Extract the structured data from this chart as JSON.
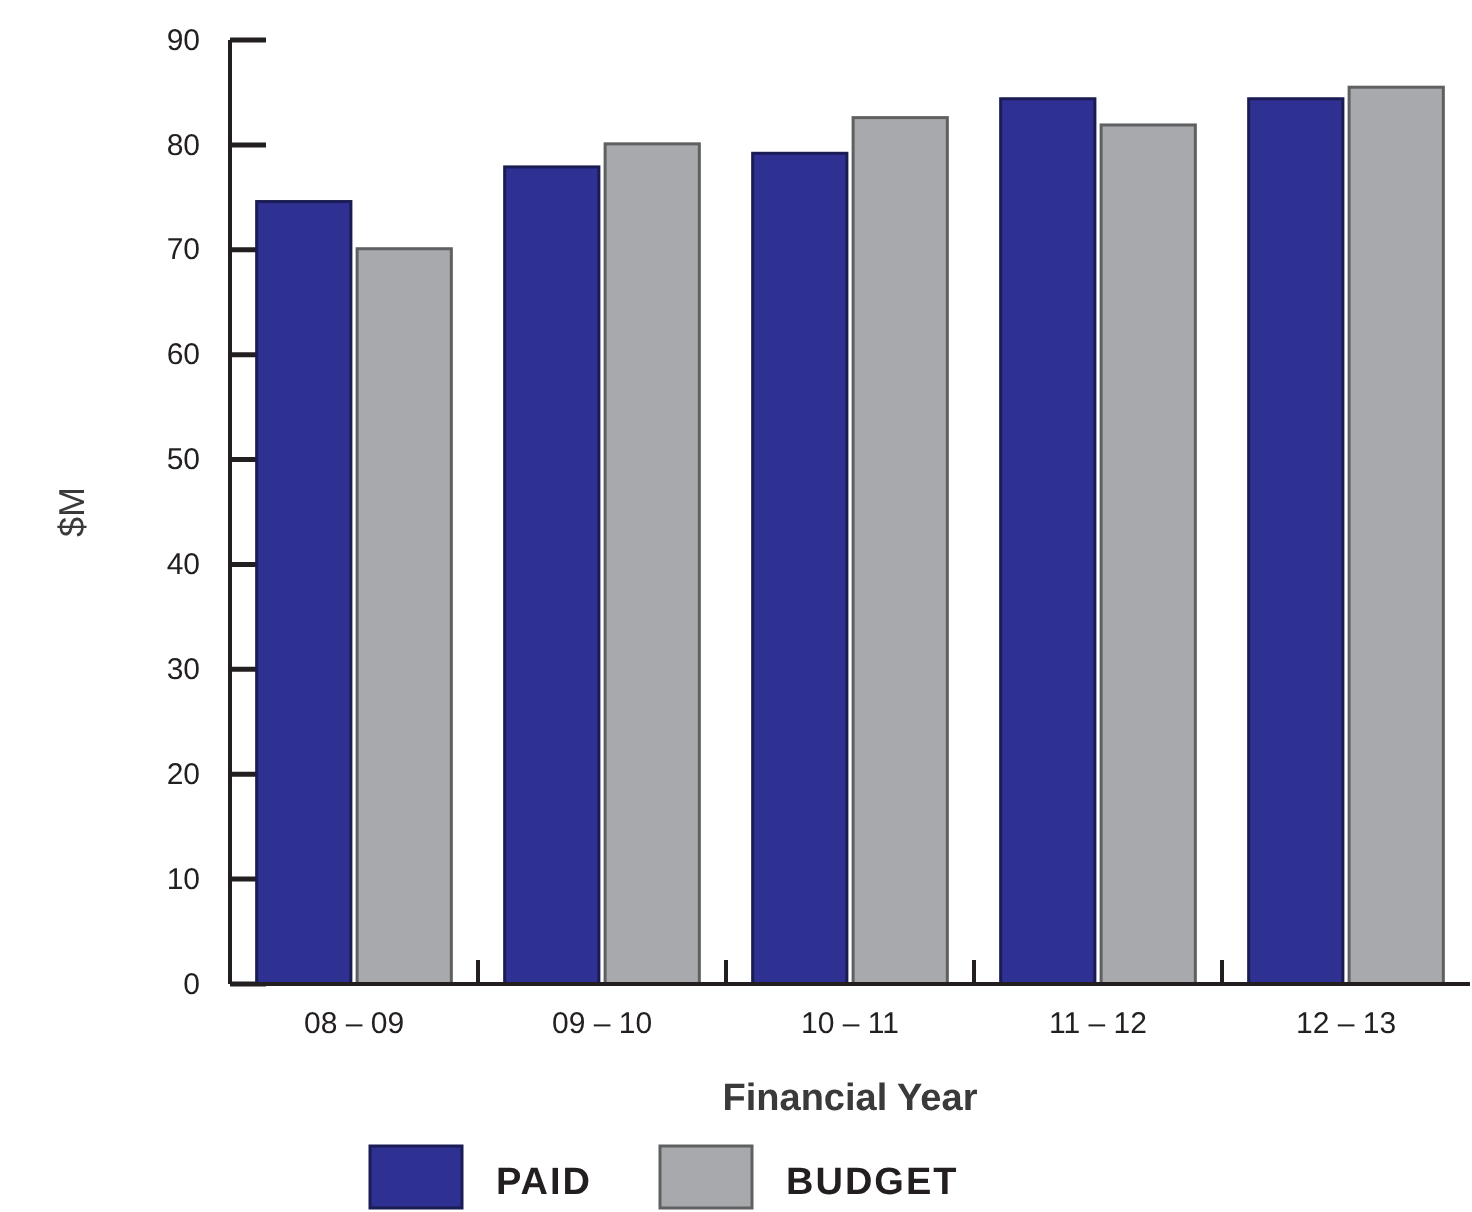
{
  "chart_data": {
    "type": "bar",
    "xlabel": "Financial Year",
    "ylabel": "$M",
    "categories": [
      "08 – 09",
      "09 – 10",
      "10 – 11",
      "11 – 12",
      "12 – 13"
    ],
    "series": [
      {
        "name": "PAID",
        "color": "#2e3192",
        "values": [
          74.6,
          77.9,
          79.2,
          84.4,
          84.4
        ]
      },
      {
        "name": "BUDGET",
        "color": "#a7a9ac",
        "values": [
          70.1,
          80.1,
          82.6,
          81.9,
          85.5
        ]
      }
    ],
    "ylim": [
      0,
      90
    ],
    "yticks": [
      0,
      10,
      20,
      30,
      40,
      50,
      60,
      70,
      80,
      90
    ],
    "legend": "bottom"
  }
}
